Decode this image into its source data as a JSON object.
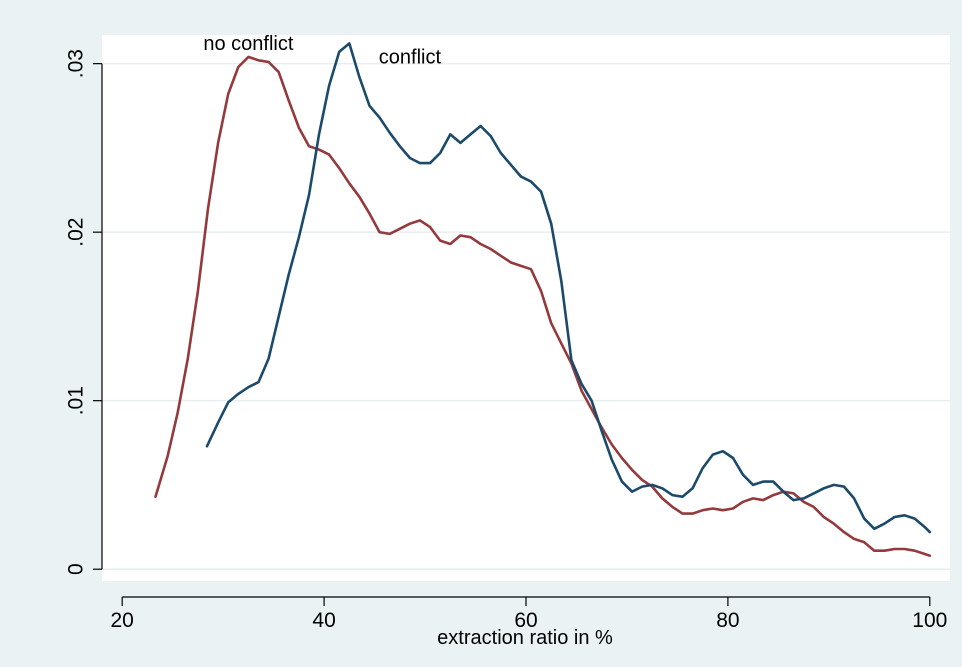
{
  "chart_data": {
    "type": "line",
    "title": "",
    "xlabel": "extraction ratio in %",
    "ylabel": "",
    "xlim": [
      18,
      102
    ],
    "ylim": [
      -0.0007,
      0.0317
    ],
    "xticks": [
      20,
      40,
      60,
      80,
      100
    ],
    "xtick_labels": [
      "20",
      "40",
      "60",
      "80",
      "100"
    ],
    "yticks": [
      0,
      0.01,
      0.02,
      0.03
    ],
    "ytick_labels": [
      "0",
      ".01",
      ".02",
      ".03"
    ],
    "grid": true,
    "legend": "none",
    "colors": {
      "background": "#eaf2f3",
      "plot_area": "#ffffff",
      "gridline": "#e7eef0",
      "no_conflict": "#943a3d",
      "conflict": "#1c4a6b"
    },
    "series": [
      {
        "name": "no conflict",
        "color": "#943a3d",
        "label_at": [
          32.5,
          0.0308
        ],
        "x": [
          23.3,
          24.5,
          25.5,
          26.5,
          27.5,
          28.5,
          29.5,
          30.5,
          31.5,
          32.5,
          33.5,
          34.5,
          35.5,
          36.5,
          37.5,
          38.5,
          39.5,
          40.5,
          41.5,
          42.5,
          43.5,
          44.5,
          45.5,
          46.5,
          47.5,
          48.5,
          49.5,
          50.5,
          51.5,
          52.5,
          53.5,
          54.5,
          55.5,
          56.5,
          57.5,
          58.5,
          59.5,
          60.5,
          61.5,
          62.5,
          63.5,
          64.5,
          65.5,
          66.5,
          67.5,
          68.5,
          69.5,
          70.5,
          71.5,
          72.5,
          73.5,
          74.5,
          75.5,
          76.5,
          77.5,
          78.5,
          79.5,
          80.5,
          81.5,
          82.5,
          83.5,
          84.5,
          85.5,
          86.5,
          87.5,
          88.5,
          89.5,
          90.5,
          91.5,
          92.5,
          93.5,
          94.5,
          95.5,
          96.5,
          97.5,
          98.5,
          99.5,
          100
        ],
        "y": [
          0.0043,
          0.0067,
          0.0093,
          0.0125,
          0.0165,
          0.0214,
          0.0253,
          0.0282,
          0.0298,
          0.0304,
          0.0302,
          0.0301,
          0.0295,
          0.0278,
          0.0262,
          0.0251,
          0.0249,
          0.0246,
          0.0238,
          0.0229,
          0.0221,
          0.0211,
          0.02,
          0.0199,
          0.0202,
          0.0205,
          0.0207,
          0.0203,
          0.0195,
          0.0193,
          0.0198,
          0.0197,
          0.0193,
          0.019,
          0.0186,
          0.0182,
          0.018,
          0.0178,
          0.0165,
          0.0146,
          0.0134,
          0.0122,
          0.0106,
          0.0095,
          0.0084,
          0.0074,
          0.0066,
          0.0059,
          0.0053,
          0.0049,
          0.0042,
          0.0037,
          0.0033,
          0.0033,
          0.0035,
          0.0036,
          0.0035,
          0.0036,
          0.004,
          0.0042,
          0.0041,
          0.0044,
          0.0046,
          0.0045,
          0.004,
          0.0037,
          0.0031,
          0.0027,
          0.0022,
          0.0018,
          0.0016,
          0.0011,
          0.0011,
          0.0012,
          0.0012,
          0.0011,
          0.0009,
          0.0008
        ]
      },
      {
        "name": "conflict",
        "color": "#1c4a6b",
        "label_at": [
          48.5,
          0.03
        ],
        "x": [
          28.4,
          29.5,
          30.5,
          31.5,
          32.5,
          33.5,
          34.5,
          35.5,
          36.5,
          37.5,
          38.5,
          39.5,
          40.5,
          41.5,
          42.5,
          43.5,
          44.5,
          45.5,
          46.5,
          47.5,
          48.5,
          49.5,
          50.5,
          51.5,
          52.5,
          53.5,
          54.5,
          55.5,
          56.5,
          57.5,
          58.5,
          59.5,
          60.5,
          61.5,
          62.5,
          63.5,
          64.5,
          65.5,
          66.5,
          67.5,
          68.5,
          69.5,
          70.5,
          71.5,
          72.5,
          73.5,
          74.5,
          75.5,
          76.5,
          77.5,
          78.5,
          79.5,
          80.5,
          81.5,
          82.5,
          83.5,
          84.5,
          85.5,
          86.5,
          87.5,
          88.5,
          89.5,
          90.5,
          91.5,
          92.5,
          93.5,
          94.5,
          95.5,
          96.5,
          97.5,
          98.5,
          99.5,
          100
        ],
        "y": [
          0.0073,
          0.0087,
          0.0099,
          0.0104,
          0.0108,
          0.0111,
          0.0125,
          0.015,
          0.0175,
          0.0197,
          0.0222,
          0.0258,
          0.0287,
          0.0307,
          0.0312,
          0.0292,
          0.0275,
          0.0268,
          0.0259,
          0.0251,
          0.0244,
          0.0241,
          0.0241,
          0.0247,
          0.0258,
          0.0253,
          0.0258,
          0.0263,
          0.0257,
          0.0247,
          0.024,
          0.0233,
          0.023,
          0.0224,
          0.0205,
          0.0171,
          0.0124,
          0.011,
          0.01,
          0.0082,
          0.0065,
          0.0052,
          0.0046,
          0.0049,
          0.005,
          0.0048,
          0.0044,
          0.0043,
          0.0048,
          0.006,
          0.0068,
          0.007,
          0.0066,
          0.0056,
          0.005,
          0.0052,
          0.0052,
          0.0046,
          0.0041,
          0.0042,
          0.0045,
          0.0048,
          0.005,
          0.0049,
          0.0042,
          0.003,
          0.0024,
          0.0027,
          0.0031,
          0.0032,
          0.003,
          0.0025,
          0.0022
        ]
      }
    ]
  }
}
